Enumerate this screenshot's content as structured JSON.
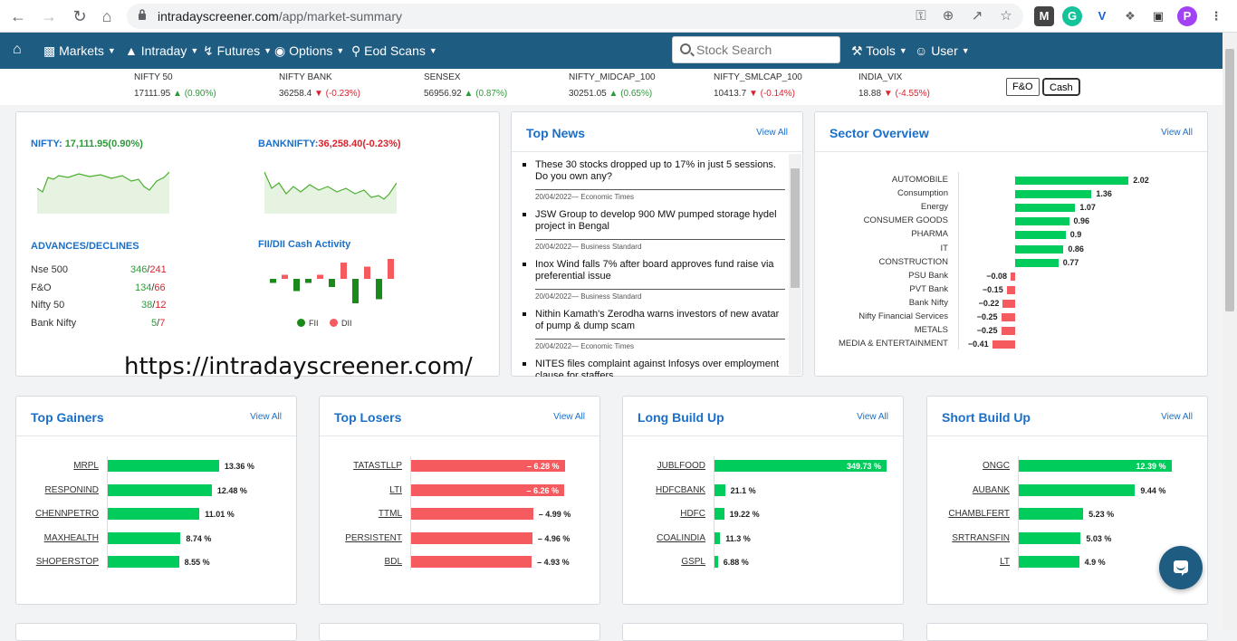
{
  "browser": {
    "url_host": "intradayscreener.com",
    "url_path": "/app/market-summary",
    "profile_initial": "P"
  },
  "nav": {
    "home": "home-icon",
    "markets": "Markets",
    "intraday": "Intraday",
    "futures": "Futures",
    "options": "Options",
    "eod_scans": "Eod Scans",
    "search_placeholder": "Stock Search",
    "tools": "Tools",
    "user": "User"
  },
  "ticker": [
    {
      "name": "NIFTY 50",
      "price": "17111.95",
      "change": "(0.90%)",
      "dir": "up"
    },
    {
      "name": "NIFTY BANK",
      "price": "36258.4",
      "change": "(-0.23%)",
      "dir": "dn"
    },
    {
      "name": "SENSEX",
      "price": "56956.92",
      "change": "(0.87%)",
      "dir": "up"
    },
    {
      "name": "NIFTY_MIDCAP_100",
      "price": "30251.05",
      "change": "(0.65%)",
      "dir": "up"
    },
    {
      "name": "NIFTY_SMLCAP_100",
      "price": "10413.7",
      "change": "(-0.14%)",
      "dir": "dn"
    },
    {
      "name": "INDIA_VIX",
      "price": "18.88",
      "change": "(-4.55%)",
      "dir": "dn"
    }
  ],
  "segments": {
    "fo": "F&O",
    "cash": "Cash"
  },
  "overview": {
    "nifty_label": "NIFTY:",
    "nifty_value": "17,111.95(0.90%)",
    "banknifty_label": "BANKNIFTY:",
    "banknifty_value": "36,258.40(-0.23%)",
    "adv_title": "ADVANCES/DECLINES",
    "adv_rows": [
      {
        "name": "Nse 500",
        "adv": "346",
        "dec": "241"
      },
      {
        "name": "F&O",
        "adv": "134",
        "dec": "66"
      },
      {
        "name": "Nifty 50",
        "adv": "38",
        "dec": "12"
      },
      {
        "name": "Bank Nifty",
        "adv": "5",
        "dec": "7"
      }
    ],
    "fii_title": "FII/DII Cash Activity",
    "fii_legend": "FII",
    "dii_legend": "DII",
    "watermark": "https://intradayscreener.com/"
  },
  "news": {
    "title": "Top News",
    "view_all": "View All",
    "items": [
      {
        "title": "These 30 stocks dropped up to 17% in just 5 sessions. Do you own any?",
        "meta": "20/04/2022— Economic Times"
      },
      {
        "title": "JSW Group to develop 900 MW pumped storage hydel project in Bengal",
        "meta": "20/04/2022— Business Standard"
      },
      {
        "title": "Inox Wind falls 7% after board approves fund raise via preferential issue",
        "meta": "20/04/2022— Business Standard"
      },
      {
        "title": "Nithin Kamath's Zerodha warns investors of new avatar of pump & dump scam",
        "meta": "20/04/2022— Economic Times"
      },
      {
        "title": "NITES files complaint against Infosys over employment clause for staffers",
        "meta": ""
      }
    ]
  },
  "sector": {
    "title": "Sector Overview",
    "view_all": "View All"
  },
  "lists": {
    "gainers": {
      "title": "Top Gainers",
      "view_all": "View All"
    },
    "losers": {
      "title": "Top Losers",
      "view_all": "View All"
    },
    "long": {
      "title": "Long Build Up",
      "view_all": "View All"
    },
    "short": {
      "title": "Short Build Up",
      "view_all": "View All"
    }
  },
  "colors": {
    "up": "#00cc5c",
    "down": "#f45a5e",
    "brand": "#1f5c82",
    "link": "#1a6fc9"
  },
  "chart_data": [
    {
      "type": "bar",
      "orientation": "horizontal",
      "categories": [
        "AUTOMOBILE",
        "Consumption",
        "Energy",
        "CONSUMER GOODS",
        "PHARMA",
        "IT",
        "CONSTRUCTION",
        "PSU Bank",
        "PVT Bank",
        "Bank Nifty",
        "Nifty Financial Services",
        "METALS",
        "MEDIA & ENTERTAINMENT"
      ],
      "values": [
        2.02,
        1.36,
        1.07,
        0.96,
        0.9,
        0.86,
        0.77,
        -0.08,
        -0.15,
        -0.22,
        -0.25,
        -0.25,
        -0.41
      ],
      "labels": [
        "2.02",
        "1.36",
        "1.07",
        "0.96",
        "0.9",
        "0.86",
        "0.77",
        "−0.08",
        "−0.15",
        "−0.22",
        "−0.25",
        "−0.25",
        "−0.41"
      ]
    },
    {
      "type": "bar",
      "orientation": "horizontal",
      "categories": [
        "MRPL",
        "RESPONIND",
        "CHENNPETRO",
        "MAXHEALTH",
        "SHOPERSTOP"
      ],
      "values": [
        13.36,
        12.48,
        11.01,
        8.74,
        8.55
      ],
      "labels": [
        "13.36 %",
        "12.48 %",
        "11.01 %",
        "8.74 %",
        "8.55 %"
      ]
    },
    {
      "type": "bar",
      "orientation": "horizontal",
      "categories": [
        "TATASTLLP",
        "LTI",
        "TTML",
        "PERSISTENT",
        "BDL"
      ],
      "values": [
        -6.28,
        -6.26,
        -4.99,
        -4.96,
        -4.93
      ],
      "labels": [
        "– 6.28 %",
        "– 6.26 %",
        "– 4.99 %",
        "– 4.96 %",
        "– 4.93 %"
      ]
    },
    {
      "type": "bar",
      "orientation": "horizontal",
      "categories": [
        "JUBLFOOD",
        "HDFCBANK",
        "HDFC",
        "COALINDIA",
        "GSPL"
      ],
      "values": [
        349.73,
        21.1,
        19.22,
        11.3,
        6.88
      ],
      "labels": [
        "349.73 %",
        "21.1 %",
        "19.22 %",
        "11.3 %",
        "6.88 %"
      ]
    },
    {
      "type": "bar",
      "orientation": "horizontal",
      "categories": [
        "ONGC",
        "AUBANK",
        "CHAMBLFERT",
        "SRTRANSFIN",
        "LT"
      ],
      "values": [
        12.39,
        9.44,
        5.23,
        5.03,
        4.9
      ],
      "labels": [
        "12.39 %",
        "9.44 %",
        "5.23 %",
        "5.03 %",
        "4.9 %"
      ]
    },
    {
      "type": "bar",
      "series": [
        {
          "name": "FII",
          "values": [
            -1,
            1,
            -3,
            -1,
            1,
            -2,
            4,
            -6,
            3,
            -5,
            5
          ]
        },
        {
          "name": "DII",
          "values": []
        }
      ]
    }
  ]
}
